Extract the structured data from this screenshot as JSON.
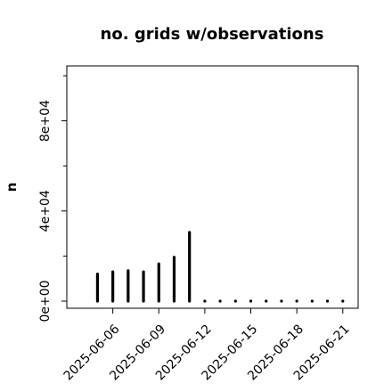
{
  "chart_data": {
    "type": "bar",
    "title": "no. grids w/observations",
    "xlabel": "",
    "ylabel": "n",
    "x": [
      "2025-06-05",
      "2025-06-06",
      "2025-06-07",
      "2025-06-08",
      "2025-06-09",
      "2025-06-10",
      "2025-06-11",
      "2025-06-12",
      "2025-06-13",
      "2025-06-14",
      "2025-06-15",
      "2025-06-16",
      "2025-06-17",
      "2025-06-18",
      "2025-06-19",
      "2025-06-20",
      "2025-06-21"
    ],
    "values": [
      12000,
      13000,
      13500,
      13000,
      16500,
      19500,
      30500,
      0,
      0,
      0,
      0,
      0,
      0,
      0,
      0,
      0,
      0
    ],
    "xlim": [
      "2025-06-03",
      "2025-06-22"
    ],
    "ylim": [
      0,
      100000
    ],
    "y_ticks": [
      {
        "value": 0,
        "label": "0e+00"
      },
      {
        "value": 40000,
        "label": "4e+04"
      },
      {
        "value": 80000,
        "label": "8e+04"
      }
    ],
    "y_minor_ticks": [
      20000,
      60000,
      100000
    ],
    "x_ticks": [
      {
        "value": "2025-06-06",
        "label": "2025-06-06",
        "color": "#000000"
      },
      {
        "value": "2025-06-09",
        "label": "2025-06-09",
        "color": "#000000"
      },
      {
        "value": "2025-06-12",
        "label": "2025-06-12",
        "color": "#228B22"
      },
      {
        "value": "2025-06-15",
        "label": "2025-06-15",
        "color": "#000000"
      },
      {
        "value": "2025-06-18",
        "label": "2025-06-18",
        "color": "#000000"
      },
      {
        "value": "2025-06-21",
        "label": "2025-06-21",
        "color": "#000000"
      }
    ],
    "bar_color": "#000000",
    "grid": false,
    "legend": "none"
  }
}
